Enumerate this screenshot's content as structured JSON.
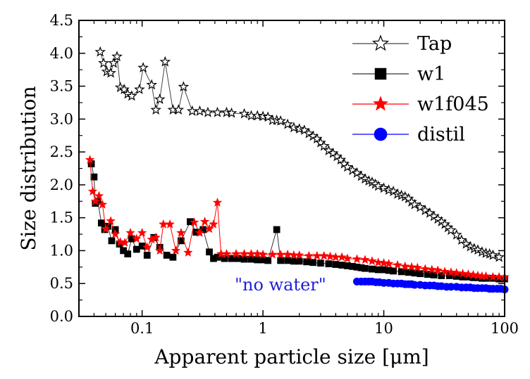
{
  "chart_data": {
    "type": "scatter",
    "x_scale": "log",
    "xlabel": "Apparent particle size [μm]",
    "ylabel": "Size distribution",
    "xlim": [
      0.03,
      100
    ],
    "ylim": [
      0.0,
      4.5
    ],
    "x_ticks": [
      {
        "value": 0.1,
        "label": "0.1"
      },
      {
        "value": 1,
        "label": "1"
      },
      {
        "value": 10,
        "label": "10"
      },
      {
        "value": 100,
        "label": "100"
      }
    ],
    "y_ticks": [
      {
        "value": 0.0,
        "label": "0.0"
      },
      {
        "value": 0.5,
        "label": "0.5"
      },
      {
        "value": 1.0,
        "label": "1.0"
      },
      {
        "value": 1.5,
        "label": "1.5"
      },
      {
        "value": 2.0,
        "label": "2.0"
      },
      {
        "value": 2.5,
        "label": "2.5"
      },
      {
        "value": 3.0,
        "label": "3.0"
      },
      {
        "value": 3.5,
        "label": "3.5"
      },
      {
        "value": 4.0,
        "label": "4.0"
      },
      {
        "value": 4.5,
        "label": "4.5"
      }
    ],
    "legend_position": "top-right",
    "grid": false,
    "annotation": "\"no water\"",
    "series": [
      {
        "name": "Tap",
        "marker": "star-open",
        "color": "#000000",
        "line_color": "#444444",
        "x": [
          0.045,
          0.048,
          0.051,
          0.055,
          0.058,
          0.062,
          0.066,
          0.071,
          0.076,
          0.082,
          0.095,
          0.102,
          0.12,
          0.13,
          0.14,
          0.155,
          0.18,
          0.2,
          0.22,
          0.26,
          0.3,
          0.35,
          0.42,
          0.5,
          0.55,
          0.7,
          0.8,
          0.9,
          1.0,
          1.1,
          1.2,
          1.3,
          1.4,
          1.6,
          1.8,
          2.0,
          2.2,
          2.4,
          2.6,
          2.8,
          3.0,
          3.2,
          3.5,
          3.8,
          4.1,
          4.4,
          4.7,
          5.0,
          5.5,
          6.0,
          6.5,
          7.0,
          7.5,
          8.0,
          8.5,
          9.0,
          10,
          11,
          12,
          13,
          14,
          15,
          16,
          17,
          18,
          20,
          22,
          24,
          26,
          28,
          30,
          32,
          34,
          36,
          40,
          44,
          48,
          52,
          56,
          60,
          65,
          70,
          75,
          80,
          90
        ],
        "y": [
          4.02,
          3.85,
          3.72,
          3.7,
          3.85,
          3.95,
          3.48,
          3.45,
          3.38,
          3.35,
          3.45,
          3.78,
          3.52,
          3.14,
          3.3,
          3.87,
          3.14,
          3.14,
          3.49,
          3.12,
          3.12,
          3.1,
          3.1,
          3.1,
          3.09,
          3.08,
          3.05,
          3.05,
          3.04,
          3.03,
          2.98,
          2.98,
          2.97,
          2.92,
          2.87,
          2.85,
          2.83,
          2.78,
          2.74,
          2.7,
          2.64,
          2.59,
          2.52,
          2.48,
          2.43,
          2.38,
          2.32,
          2.27,
          2.22,
          2.18,
          2.13,
          2.09,
          2.06,
          2.04,
          2.01,
          1.98,
          1.95,
          1.92,
          1.9,
          1.86,
          1.84,
          1.82,
          1.79,
          1.74,
          1.7,
          1.66,
          1.61,
          1.57,
          1.52,
          1.48,
          1.44,
          1.4,
          1.35,
          1.31,
          1.24,
          1.16,
          1.1,
          1.06,
          1.03,
          1.01,
          0.98,
          0.96,
          0.95,
          0.93,
          0.9
        ]
      },
      {
        "name": "w1",
        "marker": "square",
        "color": "#000000",
        "line_color": "#333333",
        "x": [
          0.038,
          0.04,
          0.041,
          0.043,
          0.046,
          0.049,
          0.052,
          0.056,
          0.06,
          0.065,
          0.07,
          0.076,
          0.082,
          0.09,
          0.1,
          0.11,
          0.125,
          0.14,
          0.16,
          0.18,
          0.21,
          0.25,
          0.28,
          0.32,
          0.36,
          0.39,
          0.42,
          0.48,
          0.55,
          0.62,
          0.7,
          0.8,
          0.9,
          1.0,
          1.1,
          1.3,
          1.4,
          1.6,
          1.8,
          2.0,
          2.3,
          2.6,
          3.0,
          3.5,
          4.0,
          4.5,
          5.0,
          5.5,
          6.0,
          6.5,
          7.0,
          8.0,
          9.0,
          10,
          11,
          12,
          14,
          16,
          18,
          20,
          23,
          26,
          30,
          35,
          40,
          45,
          50,
          55,
          60,
          65,
          70,
          80,
          90,
          100
        ],
        "y": [
          2.32,
          2.12,
          1.72,
          1.75,
          1.42,
          1.32,
          1.37,
          1.15,
          1.32,
          1.1,
          1.0,
          0.95,
          1.18,
          1.02,
          1.07,
          0.93,
          1.2,
          1.05,
          0.93,
          0.9,
          1.15,
          1.44,
          1.28,
          1.32,
          0.98,
          0.88,
          0.9,
          0.88,
          0.88,
          0.88,
          0.87,
          0.87,
          0.86,
          0.86,
          0.85,
          1.32,
          0.85,
          0.85,
          0.84,
          0.84,
          0.83,
          0.82,
          0.81,
          0.8,
          0.79,
          0.78,
          0.77,
          0.76,
          0.75,
          0.74,
          0.73,
          0.72,
          0.71,
          0.71,
          0.7,
          0.69,
          0.68,
          0.67,
          0.66,
          0.65,
          0.64,
          0.63,
          0.62,
          0.62,
          0.61,
          0.6,
          0.6,
          0.59,
          0.59,
          0.58,
          0.58,
          0.58,
          0.57,
          0.57
        ]
      },
      {
        "name": "w1f045",
        "marker": "star",
        "color": "#ff0000",
        "line_color": "#ff0000",
        "x": [
          0.037,
          0.039,
          0.041,
          0.044,
          0.047,
          0.05,
          0.055,
          0.06,
          0.066,
          0.072,
          0.08,
          0.09,
          0.1,
          0.11,
          0.12,
          0.13,
          0.14,
          0.15,
          0.17,
          0.19,
          0.21,
          0.24,
          0.27,
          0.3,
          0.33,
          0.36,
          0.39,
          0.42,
          0.45,
          0.5,
          0.6,
          0.7,
          0.8,
          0.9,
          1.0,
          1.2,
          1.4,
          1.6,
          1.8,
          2.0,
          2.4,
          2.8,
          3.2,
          3.6,
          4.0,
          4.5,
          5.0,
          6.0,
          7.0,
          8.0,
          9.0,
          10,
          11,
          13,
          15,
          17,
          19,
          22,
          25,
          28,
          32,
          36,
          40,
          45,
          50,
          55,
          60,
          65,
          70,
          80,
          90,
          100
        ],
        "y": [
          2.38,
          1.9,
          1.75,
          1.83,
          1.7,
          1.33,
          1.45,
          1.25,
          1.13,
          1.12,
          1.27,
          1.18,
          1.27,
          1.05,
          1.17,
          1.2,
          1.0,
          1.4,
          1.4,
          1.0,
          1.27,
          0.97,
          1.43,
          1.27,
          1.44,
          1.33,
          1.4,
          1.73,
          0.95,
          0.95,
          0.95,
          0.95,
          0.95,
          0.95,
          0.94,
          0.94,
          0.94,
          0.94,
          0.93,
          0.93,
          0.92,
          0.92,
          0.92,
          0.91,
          0.9,
          0.9,
          0.88,
          0.87,
          0.86,
          0.84,
          0.82,
          0.81,
          0.8,
          0.78,
          0.76,
          0.75,
          0.74,
          0.72,
          0.71,
          0.7,
          0.68,
          0.67,
          0.66,
          0.65,
          0.64,
          0.63,
          0.62,
          0.61,
          0.61,
          0.6,
          0.6,
          0.6
        ]
      },
      {
        "name": "distil",
        "marker": "circle",
        "color": "#0000ff",
        "line_color": "#0000ff",
        "x": [
          6.0,
          6.5,
          7.0,
          7.5,
          8.0,
          8.6,
          9.2,
          10,
          11,
          12,
          13,
          14,
          15,
          16,
          17,
          18,
          20,
          22,
          24,
          26,
          28,
          30,
          33,
          36,
          40,
          44,
          48,
          52,
          56,
          60,
          65,
          70,
          75,
          80,
          87,
          93,
          100
        ],
        "y": [
          0.53,
          0.53,
          0.53,
          0.53,
          0.53,
          0.52,
          0.52,
          0.51,
          0.51,
          0.5,
          0.5,
          0.5,
          0.49,
          0.49,
          0.49,
          0.48,
          0.48,
          0.47,
          0.47,
          0.47,
          0.46,
          0.46,
          0.45,
          0.45,
          0.45,
          0.44,
          0.44,
          0.44,
          0.43,
          0.43,
          0.43,
          0.43,
          0.42,
          0.42,
          0.42,
          0.42,
          0.41
        ]
      }
    ]
  }
}
